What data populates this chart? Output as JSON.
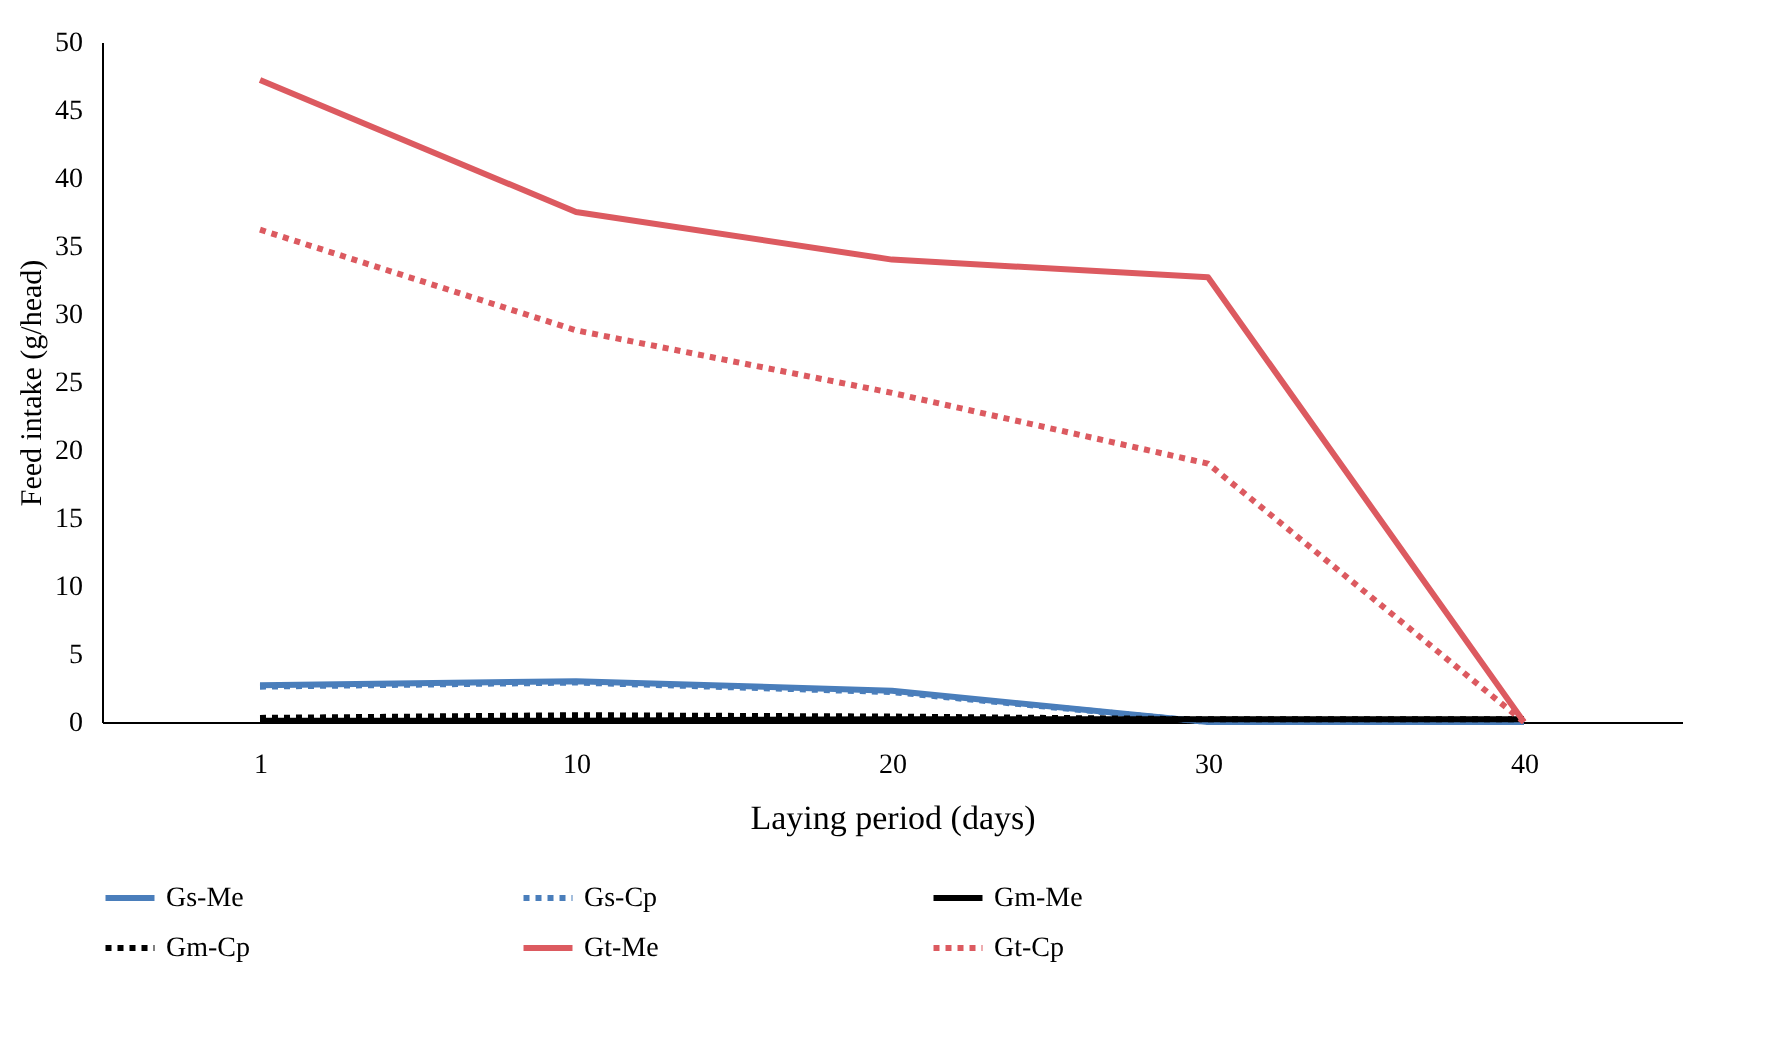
{
  "chart_data": {
    "type": "line",
    "xlabel": "Laying period (days)",
    "ylabel": "Feed intake (g/head)",
    "categories": [
      "1",
      "10",
      "20",
      "30",
      "40"
    ],
    "ylim": [
      0,
      50
    ],
    "yticks": [
      0,
      5,
      10,
      15,
      20,
      25,
      30,
      35,
      40,
      45,
      50
    ],
    "grid": false,
    "legend": "bottom",
    "marker": "none",
    "series": [
      {
        "name": "Gs-Me",
        "color": "#4a7ebb",
        "line_style": "solid",
        "values": [
          2.7,
          3,
          2.3,
          0,
          0
        ]
      },
      {
        "name": "Gs-Cp",
        "color": "#4a7ebb",
        "line_style": "dotted",
        "values": [
          2.6,
          2.9,
          2.2,
          0,
          0
        ]
      },
      {
        "name": "Gm-Me",
        "color": "#000000",
        "line_style": "solid",
        "values": [
          0.1,
          0.1,
          0.2,
          0.2,
          0.2
        ]
      },
      {
        "name": "Gm-Cp",
        "color": "#000000",
        "line_style": "dotted",
        "values": [
          0.3,
          0.5,
          0.4,
          0.2,
          0.2
        ]
      },
      {
        "name": "Gt-Me",
        "color": "#dc5a60",
        "line_style": "solid",
        "values": [
          47.2,
          37.5,
          34,
          32.7,
          0
        ]
      },
      {
        "name": "Gt-Cp",
        "color": "#dc5a60",
        "line_style": "dotted",
        "values": [
          36.2,
          28.8,
          24.2,
          19,
          0
        ]
      }
    ]
  }
}
